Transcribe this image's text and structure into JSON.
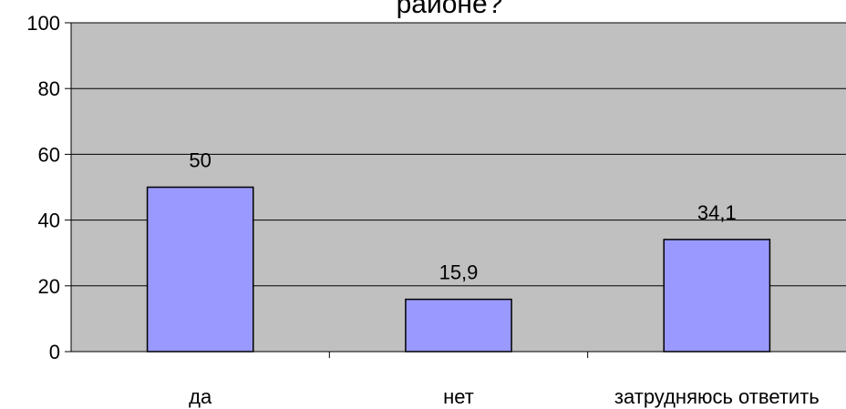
{
  "chart_data": {
    "type": "bar",
    "title": "районе?",
    "categories": [
      "да",
      "нет",
      "затрудняюсь ответить"
    ],
    "values": [
      50,
      15.9,
      34.1
    ],
    "data_labels": [
      "50",
      "15,9",
      "34,1"
    ],
    "xlabel": "",
    "ylabel": "",
    "ylim": [
      0,
      100
    ],
    "yticks": [
      0,
      20,
      40,
      60,
      80,
      100
    ],
    "ytick_labels": [
      "0",
      "20",
      "40",
      "60",
      "80",
      "100"
    ],
    "grid": true,
    "legend": "none",
    "colors": {
      "plot_area": "#c0c0c0",
      "bar_fill": "#9999ff",
      "bar_stroke": "#000000",
      "grid": "#000000",
      "background": "#ffffff"
    }
  }
}
